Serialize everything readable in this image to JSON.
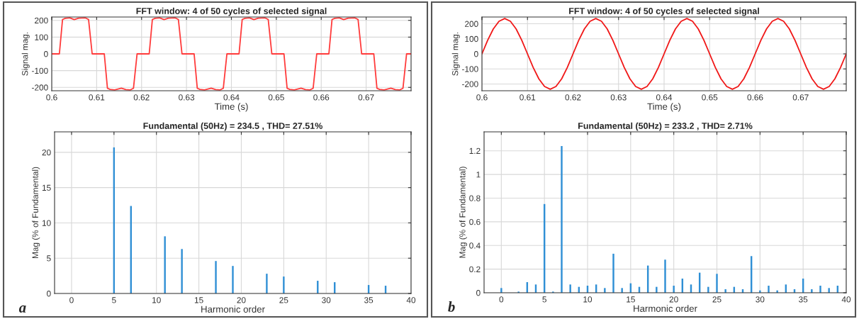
{
  "chart_data": [
    {
      "type": "line",
      "title": "FFT window: 4 of 50 cycles of selected signal",
      "xlabel": "Time (s)",
      "ylabel": "Signal mag.",
      "color": "#ff3b3b",
      "x": [
        0.6,
        0.6017,
        0.6024,
        0.603,
        0.604,
        0.605,
        0.606,
        0.6075,
        0.6082,
        0.609,
        0.6117,
        0.6124,
        0.613,
        0.614,
        0.6155,
        0.6165,
        0.6175,
        0.6182,
        0.619,
        0.62,
        0.6217,
        0.6224,
        0.623,
        0.624,
        0.625,
        0.626,
        0.6275,
        0.6282,
        0.629,
        0.6317,
        0.6324,
        0.633,
        0.634,
        0.6355,
        0.6365,
        0.6375,
        0.6382,
        0.639,
        0.64,
        0.6417,
        0.6424,
        0.643,
        0.644,
        0.645,
        0.646,
        0.6475,
        0.6482,
        0.649,
        0.6517,
        0.6524,
        0.653,
        0.654,
        0.6555,
        0.6565,
        0.6575,
        0.6582,
        0.659,
        0.66,
        0.6617,
        0.6624,
        0.663,
        0.664,
        0.665,
        0.666,
        0.6675,
        0.6682,
        0.669,
        0.6717,
        0.6724,
        0.673,
        0.674,
        0.6755,
        0.6765,
        0.6775,
        0.6782,
        0.679,
        0.68
      ],
      "values": [
        0,
        0,
        205,
        212,
        215,
        205,
        213,
        215,
        205,
        0,
        0,
        -205,
        -212,
        -215,
        -205,
        -213,
        -215,
        -205,
        0,
        0,
        0,
        205,
        212,
        215,
        205,
        213,
        215,
        205,
        0,
        0,
        -205,
        -212,
        -215,
        -205,
        -213,
        -215,
        -205,
        0,
        0,
        0,
        205,
        212,
        215,
        205,
        213,
        215,
        205,
        0,
        0,
        -205,
        -212,
        -215,
        -205,
        -213,
        -215,
        -205,
        0,
        0,
        0,
        205,
        212,
        215,
        205,
        213,
        215,
        205,
        0,
        0,
        -205,
        -212,
        -215,
        -205,
        -213,
        -215,
        -205,
        0,
        0
      ],
      "xlim": [
        0.6,
        0.68
      ],
      "ylim": [
        -220,
        220
      ],
      "xticks": [
        0.6,
        0.61,
        0.62,
        0.63,
        0.64,
        0.65,
        0.66,
        0.67
      ],
      "yticks": [
        -200,
        -100,
        0,
        100,
        200
      ],
      "grid": true
    },
    {
      "type": "bar",
      "title": "Fundamental (50Hz) = 234.5 , THD= 27.51%",
      "xlabel": "Harmonic order",
      "ylabel": "Mag (% of Fundamental)",
      "color": "#2f8fd5",
      "x": [
        5,
        7,
        11,
        13,
        17,
        19,
        23,
        25,
        29,
        31,
        35,
        37
      ],
      "values": [
        20.7,
        12.4,
        8.1,
        6.3,
        4.6,
        3.9,
        2.8,
        2.4,
        1.8,
        1.6,
        1.2,
        1.1
      ],
      "xlim": [
        -2,
        40
      ],
      "ylim": [
        0,
        22.9
      ],
      "xticks": [
        0,
        5,
        10,
        15,
        20,
        25,
        30,
        35,
        40
      ],
      "yticks": [
        0,
        5,
        10,
        15,
        20
      ],
      "grid": true,
      "annotations": [
        "a"
      ]
    },
    {
      "type": "line",
      "title": "FFT window: 4 of 50 cycles of selected signal",
      "xlabel": "Time (s)",
      "ylabel": "Signal mag.",
      "color": "#f01818",
      "x": [
        0.6,
        0.60125,
        0.6025,
        0.60375,
        0.605,
        0.60625,
        0.6075,
        0.60875,
        0.61,
        0.61125,
        0.6125,
        0.61375,
        0.615,
        0.61625,
        0.6175,
        0.61875,
        0.62,
        0.62125,
        0.6225,
        0.62375,
        0.625,
        0.62625,
        0.6275,
        0.62875,
        0.63,
        0.63125,
        0.6325,
        0.63375,
        0.635,
        0.63625,
        0.6375,
        0.63875,
        0.64,
        0.64125,
        0.6425,
        0.64375,
        0.645,
        0.64625,
        0.6475,
        0.64875,
        0.65,
        0.65125,
        0.6525,
        0.65375,
        0.655,
        0.65625,
        0.6575,
        0.65875,
        0.66,
        0.66125,
        0.6625,
        0.66375,
        0.665,
        0.66625,
        0.6675,
        0.66875,
        0.67,
        0.67125,
        0.6725,
        0.67375,
        0.675,
        0.67625,
        0.6775,
        0.67875,
        0.68
      ],
      "values": [
        0,
        90,
        166,
        217,
        235,
        217,
        166,
        90,
        0,
        -90,
        -166,
        -217,
        -235,
        -217,
        -166,
        -90,
        0,
        90,
        166,
        217,
        235,
        217,
        166,
        90,
        0,
        -90,
        -166,
        -217,
        -235,
        -217,
        -166,
        -90,
        0,
        90,
        166,
        217,
        235,
        217,
        166,
        90,
        0,
        -90,
        -166,
        -217,
        -235,
        -217,
        -166,
        -90,
        0,
        90,
        166,
        217,
        235,
        217,
        166,
        90,
        0,
        -90,
        -166,
        -217,
        -235,
        -217,
        -166,
        -90,
        0
      ],
      "xlim": [
        0.6,
        0.68
      ],
      "ylim": [
        -245,
        245
      ],
      "xticks": [
        0.6,
        0.61,
        0.62,
        0.63,
        0.64,
        0.65,
        0.66,
        0.67
      ],
      "yticks": [
        -200,
        -100,
        0,
        100,
        200
      ],
      "grid": true
    },
    {
      "type": "bar",
      "title": "Fundamental (50Hz) = 233.2 , THD= 2.71%",
      "xlabel": "Harmonic order",
      "ylabel": "Mag (% of Fundamental)",
      "color": "#2f8fd5",
      "x": [
        0,
        1,
        2,
        3,
        4,
        5,
        6,
        7,
        8,
        9,
        10,
        11,
        12,
        13,
        14,
        15,
        16,
        17,
        18,
        19,
        20,
        21,
        22,
        23,
        24,
        25,
        26,
        27,
        28,
        29,
        30,
        31,
        32,
        33,
        34,
        35,
        36,
        37,
        38,
        39
      ],
      "values": [
        0.04,
        null,
        0.01,
        0.09,
        0.07,
        0.75,
        0.01,
        1.24,
        0.07,
        0.05,
        0.06,
        0.07,
        0.04,
        0.33,
        0.04,
        0.08,
        0.05,
        0.23,
        0.05,
        0.28,
        0.06,
        0.12,
        0.07,
        0.17,
        0.05,
        0.16,
        0.03,
        0.05,
        0.03,
        0.31,
        0.02,
        0.06,
        0.02,
        0.07,
        0.03,
        0.12,
        0.03,
        0.06,
        0.04,
        0.06
      ],
      "xlim": [
        -2,
        40
      ],
      "ylim": [
        0,
        1.36
      ],
      "xticks": [
        0,
        5,
        10,
        15,
        20,
        25,
        30,
        35,
        40
      ],
      "yticks": [
        0,
        0.2,
        0.4,
        0.6,
        0.8,
        1,
        1.2
      ],
      "grid": true,
      "annotations": [
        "b"
      ]
    }
  ]
}
